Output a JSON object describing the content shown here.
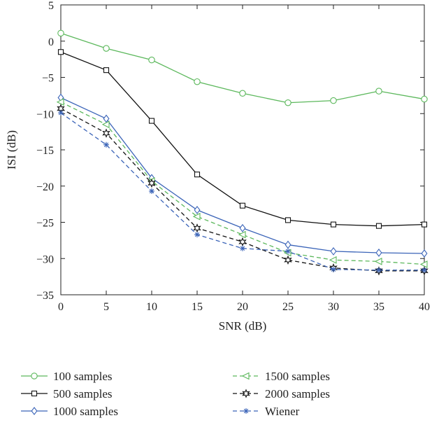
{
  "chart_data": {
    "type": "line",
    "title": "",
    "xlabel": "SNR (dB)",
    "ylabel": "ISI (dB)",
    "xlim": [
      0,
      40
    ],
    "ylim": [
      -35,
      5
    ],
    "x_ticks": [
      "0",
      "5",
      "10",
      "15",
      "20",
      "25",
      "30",
      "35",
      "40"
    ],
    "y_ticks": [
      "5",
      "0",
      "−5",
      "−10",
      "−15",
      "−20",
      "−25",
      "−30",
      "−35"
    ],
    "grid": false,
    "legend_position": "bottom",
    "x": [
      0,
      5,
      10,
      15,
      20,
      25,
      30,
      35,
      40
    ],
    "series": [
      {
        "name": "100 samples",
        "color": "#5cb85c",
        "dash": "solid",
        "marker": "circle",
        "values": [
          1.1,
          -1.0,
          -2.6,
          -5.6,
          -7.2,
          -8.5,
          -8.2,
          -6.9,
          -8.0
        ]
      },
      {
        "name": "500 samples",
        "color": "#111111",
        "dash": "solid",
        "marker": "square",
        "values": [
          -1.5,
          -4.0,
          -11.0,
          -18.4,
          -22.7,
          -24.7,
          -25.3,
          -25.5,
          -25.3
        ]
      },
      {
        "name": "1000 samples",
        "color": "#3b64b8",
        "dash": "solid",
        "marker": "diamond",
        "values": [
          -7.8,
          -10.7,
          -18.9,
          -23.3,
          -25.8,
          -28.1,
          -29.0,
          -29.2,
          -29.3
        ]
      },
      {
        "name": "1500 samples",
        "color": "#5cb85c",
        "dash": "dashed",
        "marker": "triangle-left",
        "values": [
          -8.4,
          -11.5,
          -19.3,
          -24.2,
          -26.7,
          -29.2,
          -30.2,
          -30.4,
          -30.8
        ]
      },
      {
        "name": "2000 samples",
        "color": "#111111",
        "dash": "dashed",
        "marker": "star",
        "values": [
          -9.3,
          -12.7,
          -19.6,
          -25.8,
          -27.7,
          -30.2,
          -31.3,
          -31.7,
          -31.7
        ]
      },
      {
        "name": "Wiener",
        "color": "#3b64b8",
        "dash": "dashed",
        "marker": "asterisk",
        "values": [
          -9.9,
          -14.3,
          -20.7,
          -26.7,
          -28.6,
          -29.0,
          -31.5,
          -31.6,
          -31.6
        ]
      }
    ]
  }
}
